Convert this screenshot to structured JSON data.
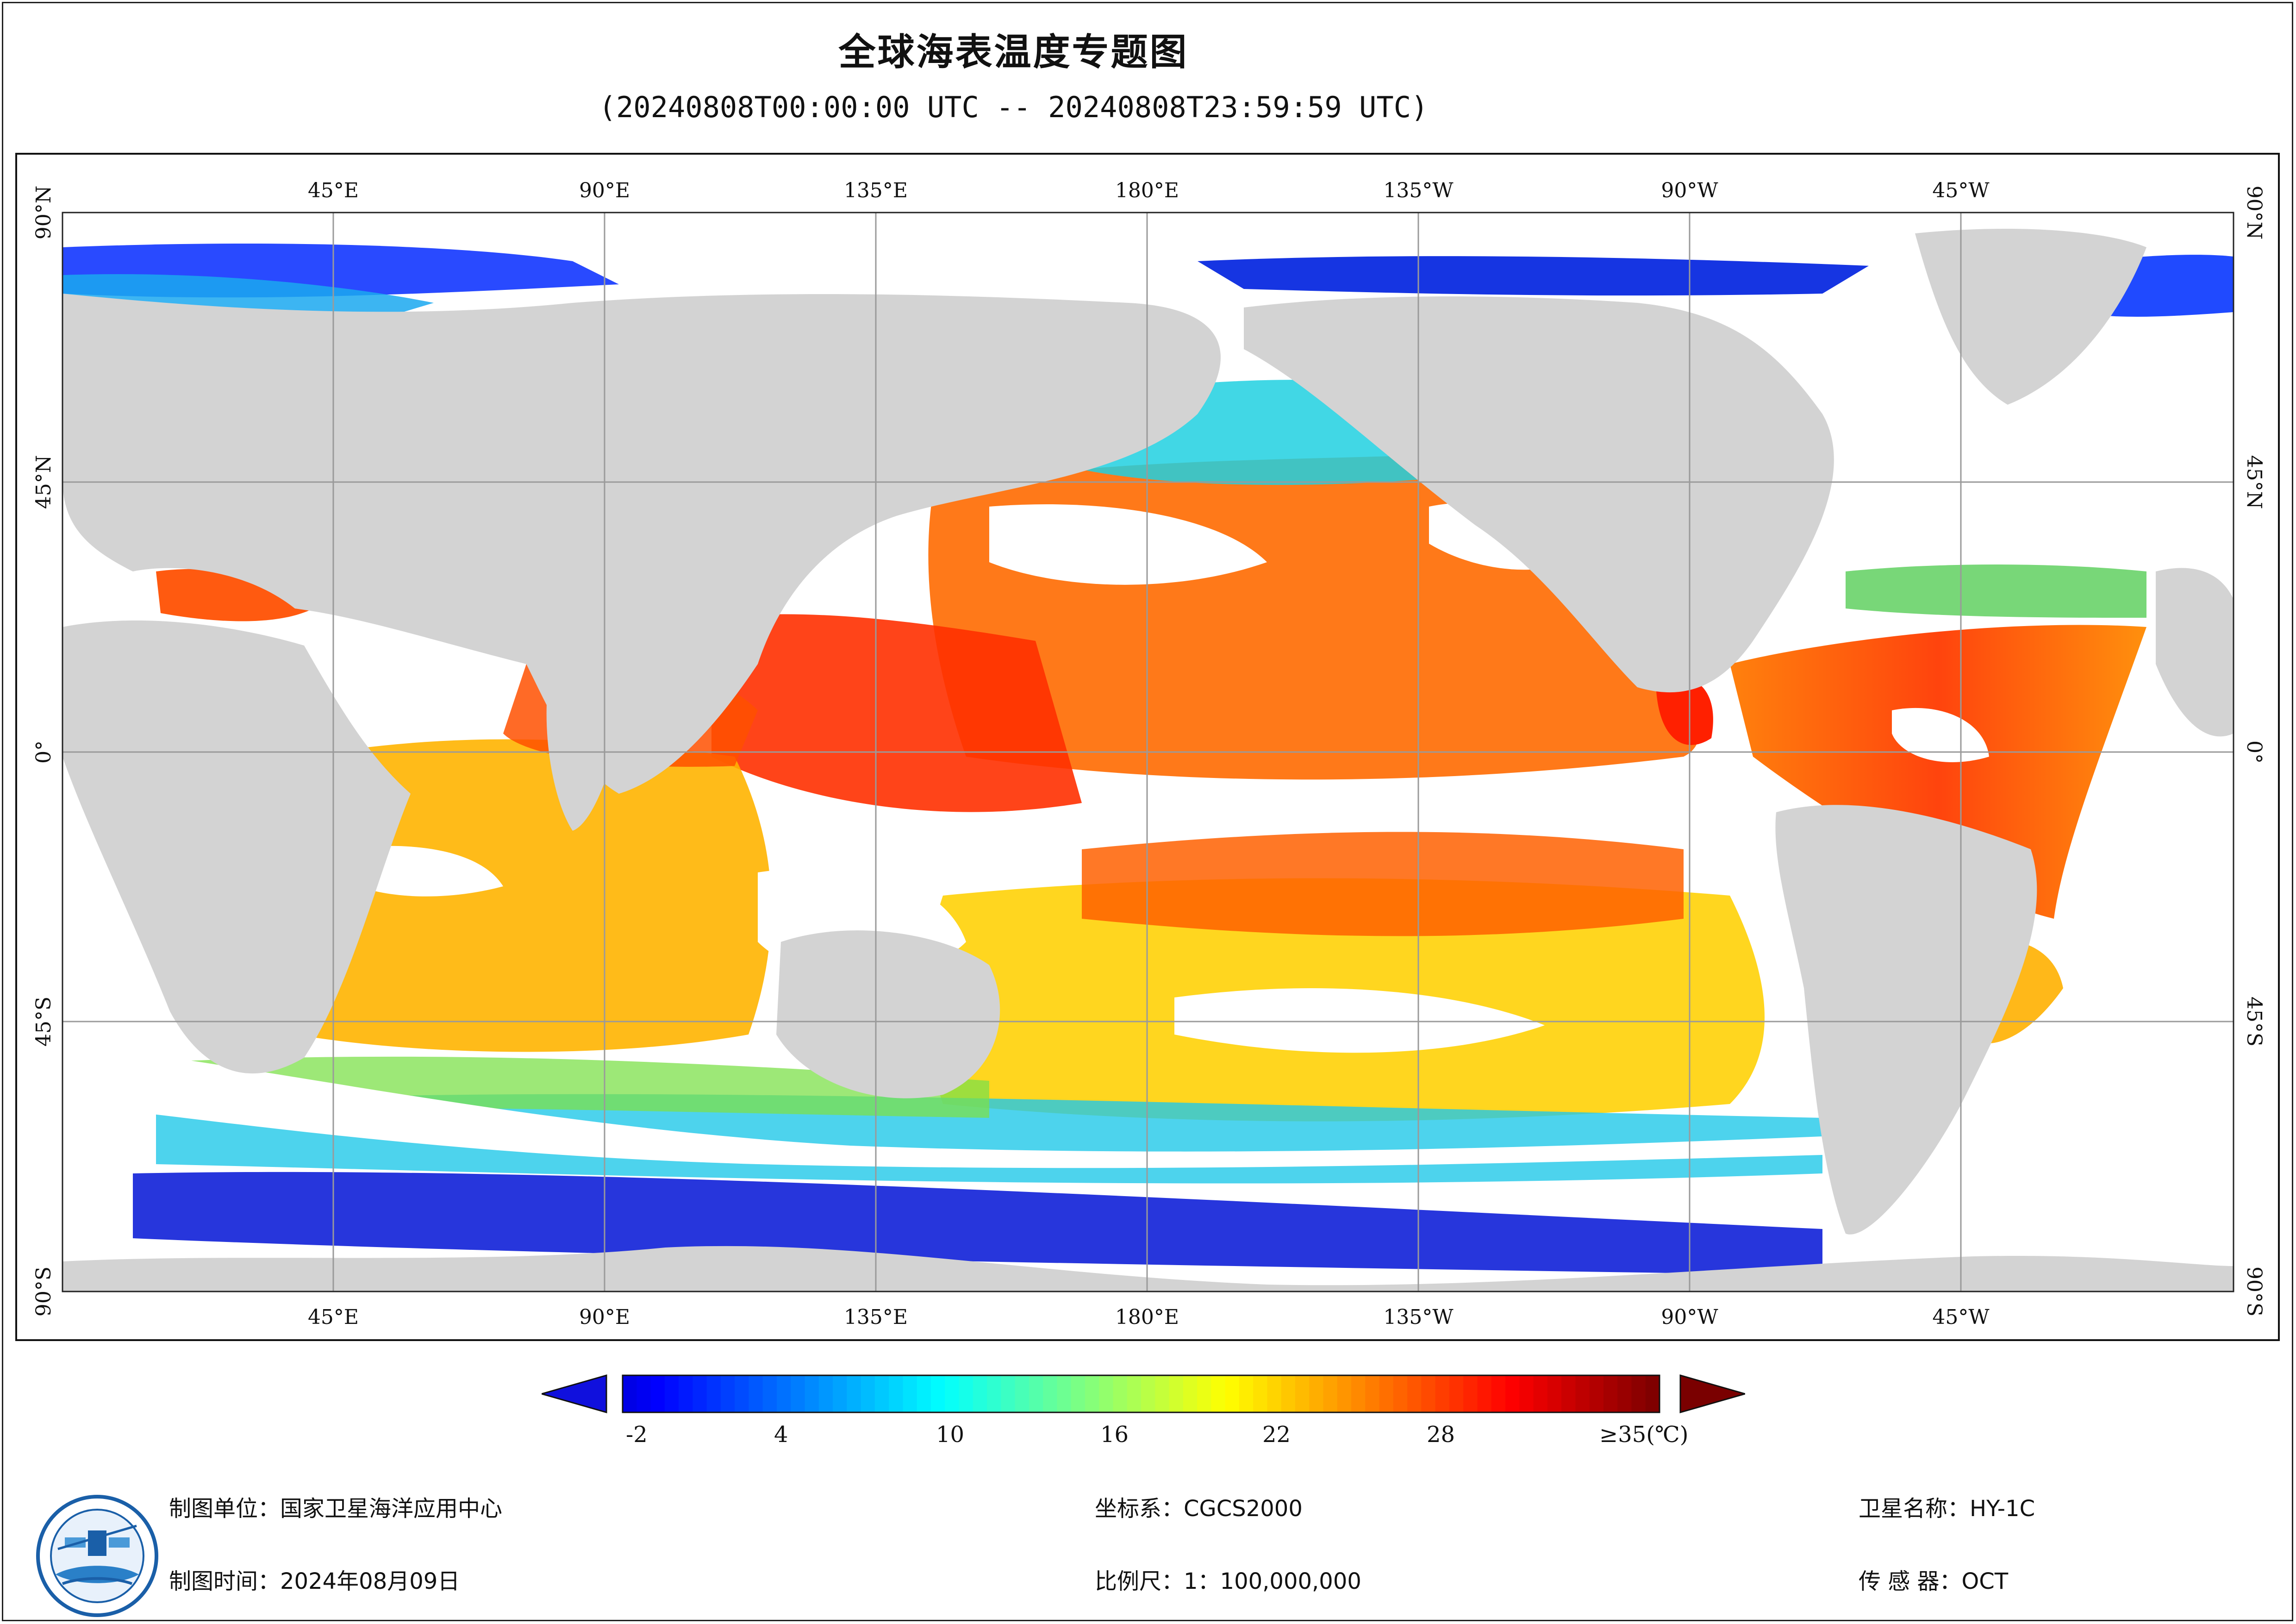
{
  "title": "全球海表温度专题图",
  "subtitle": "(20240808T00:00:00 UTC -- 20240808T23:59:59 UTC)",
  "map": {
    "lon_labels": [
      "45°E",
      "90°E",
      "135°E",
      "180°E",
      "135°W",
      "90°W",
      "45°W"
    ],
    "lat_labels": [
      "90°N",
      "45°N",
      "0°",
      "45°S",
      "90°S"
    ],
    "land_color": "#d3d3d3",
    "cloud_color": "#ffffff",
    "grid_color": "#9a9a9a"
  },
  "colorbar": {
    "labels": [
      "-2",
      "4",
      "10",
      "16",
      "22",
      "28",
      "≥35(℃)"
    ],
    "min": -2,
    "max": 35,
    "under_color": "#1010dd",
    "over_color": "#7a0000"
  },
  "footer": {
    "unit": "制图单位：国家卫星海洋应用中心",
    "time": "制图时间：2024年08月09日",
    "crs": "坐标系：CGCS2000",
    "scale": "比例尺：1：100,000,000",
    "satellite": "卫星名称：HY-1C",
    "sensor": "传 感 器：OCT"
  },
  "logo": {
    "name": "nsoas-logo-icon"
  }
}
